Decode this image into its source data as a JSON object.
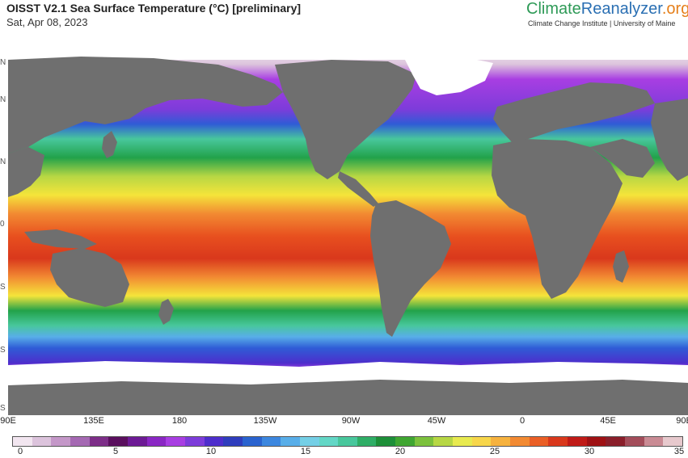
{
  "header": {
    "title": "OISST V2.1 Sea Surface Temperature (°C) [preliminary]",
    "date": "Sat, Apr 08, 2023"
  },
  "brand": {
    "logo_part1": "Climate",
    "logo_part2": "Reanalyzer",
    "logo_part3": ".org",
    "subtitle": "Climate Change Institute | University of Maine"
  },
  "map": {
    "longitude_labels": [
      "90E",
      "135E",
      "180",
      "135W",
      "90W",
      "45W",
      "0",
      "45E",
      "90E"
    ],
    "latitude_labels": [
      "N",
      "N",
      "N",
      "0",
      "S",
      "S",
      "S"
    ],
    "colors": {
      "land": "#6f6f6f",
      "ice": "#ffffff",
      "cold": "#7a1fb0",
      "cool": "#2f5cd6",
      "mild": "#22a24a",
      "warm": "#f5e43a",
      "hot": "#e8501f",
      "hottest": "#b2121a"
    }
  },
  "colorbar": {
    "ticks": [
      "0",
      "5",
      "10",
      "15",
      "20",
      "25",
      "30",
      "35"
    ],
    "colors": [
      "#f2e6f0",
      "#dcc3dc",
      "#c497c8",
      "#a569b3",
      "#7d2e88",
      "#5a0f5e",
      "#6d1a95",
      "#8a27c4",
      "#a83ee2",
      "#7d3cda",
      "#4d2ecc",
      "#2f3dbd",
      "#2a63cf",
      "#3c87df",
      "#58aee9",
      "#74cfe6",
      "#63d7c6",
      "#48c79c",
      "#2fae66",
      "#1d8f38",
      "#3fa631",
      "#7cc13c",
      "#b7d744",
      "#e8ea4f",
      "#f7d64a",
      "#f6b23e",
      "#f28a32",
      "#ea5f26",
      "#d9381c",
      "#c01b17",
      "#9f1114",
      "#8a1e2a",
      "#a34d5a",
      "#c98b94",
      "#e7c9cd"
    ]
  }
}
